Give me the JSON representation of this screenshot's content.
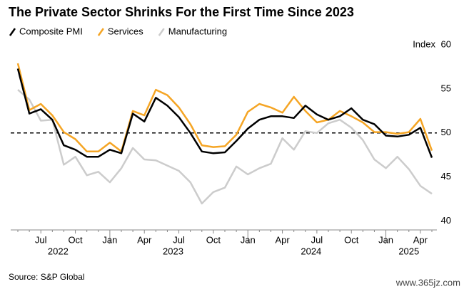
{
  "chart_data": {
    "type": "line",
    "title": "The Private Sector Shrinks For the First Time Since 2023",
    "y_unit": "Index",
    "source": "Source: S&P Global",
    "watermark": "www.365jz.com",
    "categories": [
      null,
      null,
      "Jul",
      null,
      null,
      "Oct",
      null,
      null,
      "Jan",
      null,
      null,
      "Apr",
      null,
      null,
      "Jul",
      null,
      null,
      "Oct",
      null,
      null,
      "Jan",
      null,
      null,
      "Apr",
      null,
      null,
      "Jul",
      null,
      null,
      "Oct",
      null,
      null,
      "Jan",
      null,
      null,
      "Apr",
      null
    ],
    "years": [
      "2022",
      "2023",
      "2024",
      "2025"
    ],
    "series": [
      {
        "name": "Composite PMI",
        "color": "#000000",
        "values": [
          57.3,
          52.2,
          52.7,
          51.5,
          48.6,
          48.1,
          47.3,
          47.3,
          48.1,
          47.7,
          52.2,
          51.3,
          54.0,
          53.1,
          51.8,
          50.0,
          47.9,
          47.7,
          47.8,
          49.1,
          50.5,
          51.5,
          51.9,
          51.9,
          51.7,
          53.1,
          52.1,
          51.5,
          51.9,
          52.8,
          51.5,
          51.0,
          49.7,
          49.6,
          49.8,
          50.6,
          47.2
        ]
      },
      {
        "name": "Services",
        "color": "#f5a524",
        "values": [
          57.9,
          52.6,
          53.3,
          52.0,
          50.1,
          49.3,
          47.9,
          47.9,
          48.9,
          47.9,
          52.5,
          52.0,
          54.9,
          54.3,
          52.9,
          51.0,
          48.6,
          48.4,
          48.5,
          49.8,
          52.4,
          53.3,
          52.9,
          52.3,
          54.1,
          52.5,
          51.2,
          51.5,
          52.5,
          51.9,
          51.2,
          50.1,
          50.1,
          49.9,
          50.1,
          51.6,
          48.0
        ]
      },
      {
        "name": "Manufacturing",
        "color": "#cccccc",
        "values": [
          54.9,
          53.8,
          51.4,
          51.5,
          46.4,
          47.3,
          45.2,
          45.6,
          44.4,
          46.0,
          48.3,
          47.0,
          46.9,
          46.3,
          45.7,
          44.4,
          42.0,
          43.3,
          43.8,
          46.2,
          45.3,
          46.0,
          46.5,
          49.4,
          48.1,
          50.2,
          50.0,
          51.1,
          51.5,
          50.6,
          49.2,
          47.0,
          46.0,
          47.3,
          45.9,
          44.0,
          43.1
        ]
      }
    ],
    "reference_line": 50,
    "ylim": [
      39,
      60
    ],
    "yticks": [
      40,
      45,
      50,
      55,
      60
    ],
    "grid": false,
    "legend": "top-left"
  }
}
